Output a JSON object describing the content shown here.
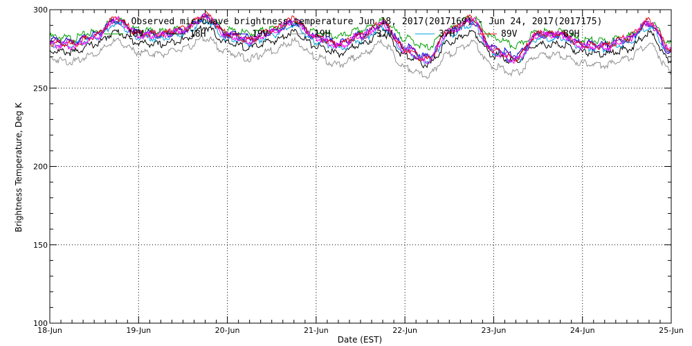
{
  "chart_data": {
    "type": "line",
    "title": "Observed microwave brightness temperature Jun 18, 2017(2017169) - Jun 24, 2017(2017175)",
    "xlabel": "Date (EST)",
    "ylabel": "Brightness Temperature, Deg K",
    "xlim": [
      "2017-06-18",
      "2017-06-25"
    ],
    "ylim": [
      100,
      300
    ],
    "x_tick_labels": [
      "18-Jun",
      "19-Jun",
      "20-Jun",
      "21-Jun",
      "22-Jun",
      "23-Jun",
      "24-Jun",
      "25-Jun"
    ],
    "y_tick_labels": [
      "100",
      "150",
      "200",
      "250",
      "300"
    ],
    "y_ticks": [
      100,
      150,
      200,
      250,
      300
    ],
    "grid": true,
    "legend_placement": "top",
    "x": [
      "2017-06-18",
      "2017-06-18 06h",
      "2017-06-18 12h",
      "2017-06-18 18h",
      "2017-06-19",
      "2017-06-19 06h",
      "2017-06-19 12h",
      "2017-06-19 18h",
      "2017-06-20",
      "2017-06-20 06h",
      "2017-06-20 12h",
      "2017-06-20 18h",
      "2017-06-21",
      "2017-06-21 06h",
      "2017-06-21 12h",
      "2017-06-21 18h",
      "2017-06-22",
      "2017-06-22 06h",
      "2017-06-22 12h",
      "2017-06-22 18h",
      "2017-06-23",
      "2017-06-23 06h",
      "2017-06-23 12h",
      "2017-06-23 18h",
      "2017-06-24",
      "2017-06-24 06h",
      "2017-06-24 12h",
      "2017-06-24 18h",
      "2017-06-25"
    ],
    "series": [
      {
        "name": "18V",
        "color": "#00a000",
        "values": [
          284,
          283,
          287,
          295,
          288,
          287,
          289,
          297,
          288,
          286,
          289,
          294,
          287,
          284,
          288,
          294,
          283,
          277,
          289,
          296,
          283,
          278,
          287,
          287,
          282,
          281,
          284,
          293,
          279
        ]
      },
      {
        "name": "18H",
        "color": "#000000",
        "values": [
          275,
          274,
          279,
          287,
          280,
          279,
          282,
          290,
          280,
          277,
          281,
          287,
          278,
          273,
          279,
          286,
          272,
          266,
          280,
          287,
          272,
          268,
          279,
          279,
          274,
          273,
          276,
          286,
          268
        ]
      },
      {
        "name": "19V",
        "color": "#0000cc",
        "values": [
          282,
          281,
          285,
          294,
          287,
          285,
          288,
          296,
          286,
          283,
          287,
          293,
          284,
          280,
          285,
          292,
          278,
          271,
          287,
          294,
          277,
          272,
          285,
          285,
          280,
          279,
          282,
          292,
          273
        ]
      },
      {
        "name": "19H",
        "color": "#909090",
        "values": [
          270,
          268,
          273,
          281,
          274,
          273,
          276,
          283,
          274,
          270,
          275,
          281,
          271,
          266,
          272,
          280,
          264,
          259,
          273,
          280,
          265,
          261,
          272,
          272,
          267,
          266,
          270,
          279,
          262
        ]
      },
      {
        "name": "37V",
        "color": "#9a00b0",
        "values": [
          281,
          280,
          285,
          294,
          286,
          285,
          288,
          296,
          285,
          282,
          287,
          293,
          283,
          279,
          284,
          292,
          277,
          270,
          287,
          294,
          276,
          271,
          285,
          285,
          279,
          278,
          282,
          292,
          275
        ]
      },
      {
        "name": "37H",
        "color": "#00a0e0",
        "values": [
          279,
          278,
          283,
          292,
          284,
          283,
          286,
          294,
          283,
          280,
          285,
          291,
          281,
          277,
          282,
          290,
          275,
          268,
          285,
          292,
          274,
          269,
          283,
          283,
          277,
          276,
          280,
          290,
          273
        ]
      },
      {
        "name": "89V",
        "color": "#e00000",
        "values": [
          280,
          279,
          284,
          296,
          286,
          286,
          289,
          298,
          286,
          282,
          288,
          295,
          284,
          279,
          285,
          293,
          276,
          269,
          288,
          296,
          275,
          270,
          286,
          286,
          279,
          278,
          283,
          294,
          276
        ]
      },
      {
        "name": "89H",
        "color": "#ff00ff",
        "values": [
          279,
          278,
          283,
          295,
          285,
          285,
          288,
          297,
          285,
          281,
          287,
          294,
          283,
          278,
          284,
          292,
          275,
          268,
          287,
          295,
          274,
          269,
          285,
          285,
          278,
          277,
          282,
          293,
          275
        ]
      }
    ]
  }
}
